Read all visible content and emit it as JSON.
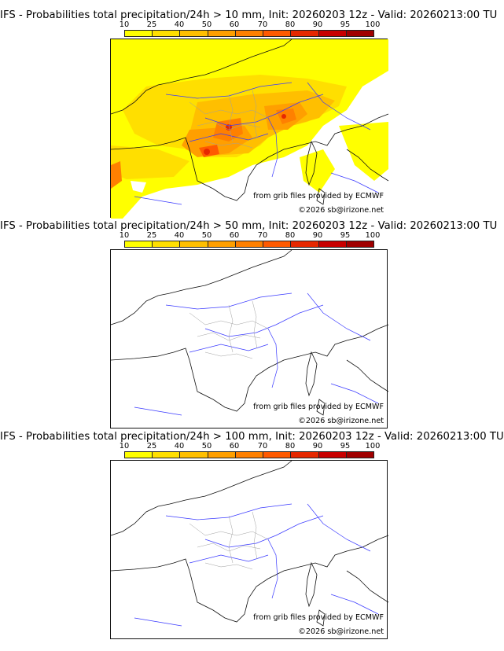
{
  "colorbar": {
    "ticks": [
      "10",
      "25",
      "40",
      "50",
      "60",
      "70",
      "80",
      "90",
      "95",
      "100"
    ],
    "colors": [
      "#ffff00",
      "#ffdf00",
      "#ffbf00",
      "#ff9f00",
      "#ff8000",
      "#ff5a00",
      "#e62800",
      "#c80000",
      "#a00000",
      "#640000"
    ]
  },
  "panels": [
    {
      "title": "IFS - Probabilities total precipitation/24h > 10 mm, Init: 20260203 12z - Valid: 20260213:00 TU",
      "source": "from grib files provided by ECMWF",
      "copyright": "©2026 sb@irizone.net"
    },
    {
      "title": "IFS - Probabilities total precipitation/24h > 50 mm, Init: 20260203 12z - Valid: 20260213:00 TU",
      "source": "from grib files provided by ECMWF",
      "copyright": "©2026 sb@irizone.net"
    },
    {
      "title": "IFS - Probabilities total precipitation/24h > 100 mm, Init: 20260203 12z - Valid: 20260213:00 TU",
      "source": "from grib files provided by ECMWF",
      "copyright": "©2026 sb@irizone.net"
    }
  ]
}
